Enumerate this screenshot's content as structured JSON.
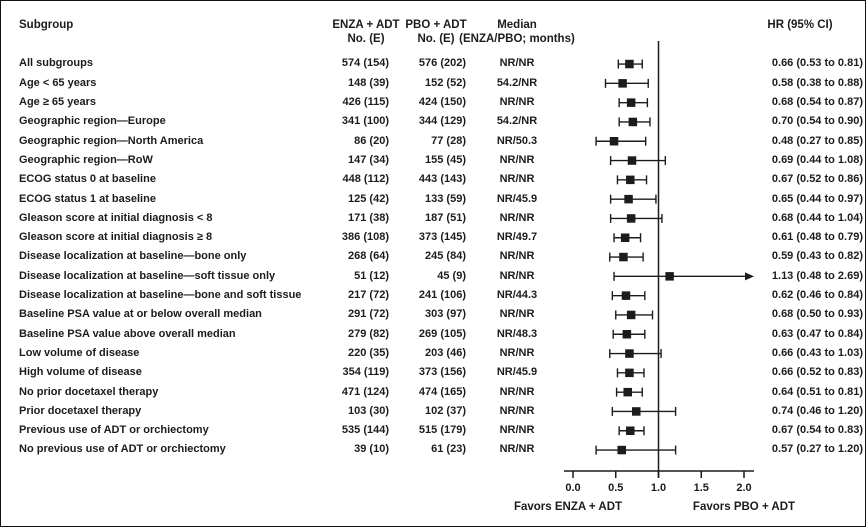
{
  "header": {
    "subgroup": "Subgroup",
    "enza_line1": "ENZA + ADT",
    "enza_line2": "No. (E)",
    "pbo_line1": "PBO + ADT",
    "pbo_line2": "No. (E)",
    "median_line1": "Median",
    "median_line2": "(ENZA/PBO; months)",
    "hr": "HR (95% CI)"
  },
  "colors": {
    "ink": "#1c1c1c",
    "background": "#ffffff"
  },
  "chart_data": {
    "type": "forest",
    "title": "",
    "xlabel_left": "Favors ENZA + ADT",
    "xlabel_right": "Favors PBO + ADT",
    "x_ticks": [
      "0.0",
      "0.5",
      "1.0",
      "1.5",
      "2.0"
    ],
    "x_tick_values": [
      0.0,
      0.5,
      1.0,
      1.5,
      2.0
    ],
    "xlim": [
      0.0,
      2.1
    ],
    "reference_line": 1.0,
    "grid": false,
    "rows": [
      {
        "subgroup": "All subgroups",
        "enza": "574 (154)",
        "pbo": "576 (202)",
        "median": "NR/NR",
        "hr": 0.66,
        "lo": 0.53,
        "hi": 0.81,
        "hr_text": "0.66 (0.53 to 0.81)",
        "arrow": false
      },
      {
        "subgroup": "Age < 65 years",
        "enza": "148 (39)",
        "pbo": "152 (52)",
        "median": "54.2/NR",
        "hr": 0.58,
        "lo": 0.38,
        "hi": 0.88,
        "hr_text": "0.58 (0.38 to 0.88)",
        "arrow": false
      },
      {
        "subgroup": "Age ≥ 65 years",
        "enza": "426 (115)",
        "pbo": "424 (150)",
        "median": "NR/NR",
        "hr": 0.68,
        "lo": 0.54,
        "hi": 0.87,
        "hr_text": "0.68 (0.54 to 0.87)",
        "arrow": false
      },
      {
        "subgroup": "Geographic region—Europe",
        "enza": "341 (100)",
        "pbo": "344 (129)",
        "median": "54.2/NR",
        "hr": 0.7,
        "lo": 0.54,
        "hi": 0.9,
        "hr_text": "0.70 (0.54 to 0.90)",
        "arrow": false
      },
      {
        "subgroup": "Geographic region—North America",
        "enza": "86 (20)",
        "pbo": "77 (28)",
        "median": "NR/50.3",
        "hr": 0.48,
        "lo": 0.27,
        "hi": 0.85,
        "hr_text": "0.48 (0.27 to 0.85)",
        "arrow": false
      },
      {
        "subgroup": "Geographic region—RoW",
        "enza": "147 (34)",
        "pbo": "155 (45)",
        "median": "NR/NR",
        "hr": 0.69,
        "lo": 0.44,
        "hi": 1.08,
        "hr_text": "0.69 (0.44 to 1.08)",
        "arrow": false
      },
      {
        "subgroup": "ECOG status 0 at baseline",
        "enza": "448 (112)",
        "pbo": "443 (143)",
        "median": "NR/NR",
        "hr": 0.67,
        "lo": 0.52,
        "hi": 0.86,
        "hr_text": "0.67 (0.52 to 0.86)",
        "arrow": false
      },
      {
        "subgroup": "ECOG status 1 at baseline",
        "enza": "125 (42)",
        "pbo": "133 (59)",
        "median": "NR/45.9",
        "hr": 0.65,
        "lo": 0.44,
        "hi": 0.97,
        "hr_text": "0.65 (0.44 to 0.97)",
        "arrow": false
      },
      {
        "subgroup": "Gleason score at initial diagnosis < 8",
        "enza": "171 (38)",
        "pbo": "187 (51)",
        "median": "NR/NR",
        "hr": 0.68,
        "lo": 0.44,
        "hi": 1.04,
        "hr_text": "0.68 (0.44 to 1.04)",
        "arrow": false
      },
      {
        "subgroup": "Gleason score at initial diagnosis ≥ 8",
        "enza": "386 (108)",
        "pbo": "373 (145)",
        "median": "NR/49.7",
        "hr": 0.61,
        "lo": 0.48,
        "hi": 0.79,
        "hr_text": "0.61 (0.48 to 0.79)",
        "arrow": false
      },
      {
        "subgroup": "Disease localization at baseline—bone only",
        "enza": "268 (64)",
        "pbo": "245 (84)",
        "median": "NR/NR",
        "hr": 0.59,
        "lo": 0.43,
        "hi": 0.82,
        "hr_text": "0.59 (0.43 to 0.82)",
        "arrow": false
      },
      {
        "subgroup": "Disease localization at baseline—soft tissue only",
        "enza": "51 (12)",
        "pbo": "45 (9)",
        "median": "NR/NR",
        "hr": 1.13,
        "lo": 0.48,
        "hi": 2.69,
        "hr_text": "1.13 (0.48 to 2.69)",
        "arrow": true
      },
      {
        "subgroup": "Disease localization at baseline—bone and soft tissue",
        "enza": "217 (72)",
        "pbo": "241 (106)",
        "median": "NR/44.3",
        "hr": 0.62,
        "lo": 0.46,
        "hi": 0.84,
        "hr_text": "0.62 (0.46 to 0.84)",
        "arrow": false
      },
      {
        "subgroup": "Baseline PSA value at or below overall median",
        "enza": "291 (72)",
        "pbo": "303 (97)",
        "median": "NR/NR",
        "hr": 0.68,
        "lo": 0.5,
        "hi": 0.93,
        "hr_text": "0.68 (0.50 to 0.93)",
        "arrow": false
      },
      {
        "subgroup": "Baseline PSA value above overall median",
        "enza": "279 (82)",
        "pbo": "269 (105)",
        "median": "NR/48.3",
        "hr": 0.63,
        "lo": 0.47,
        "hi": 0.84,
        "hr_text": "0.63 (0.47 to 0.84)",
        "arrow": false
      },
      {
        "subgroup": "Low volume of disease",
        "enza": "220 (35)",
        "pbo": "203 (46)",
        "median": "NR/NR",
        "hr": 0.66,
        "lo": 0.43,
        "hi": 1.03,
        "hr_text": "0.66 (0.43 to 1.03)",
        "arrow": false
      },
      {
        "subgroup": "High volume of disease",
        "enza": "354 (119)",
        "pbo": "373 (156)",
        "median": "NR/45.9",
        "hr": 0.66,
        "lo": 0.52,
        "hi": 0.83,
        "hr_text": "0.66 (0.52 to 0.83)",
        "arrow": false
      },
      {
        "subgroup": "No prior docetaxel therapy",
        "enza": "471 (124)",
        "pbo": "474 (165)",
        "median": "NR/NR",
        "hr": 0.64,
        "lo": 0.51,
        "hi": 0.81,
        "hr_text": "0.64 (0.51 to 0.81)",
        "arrow": false
      },
      {
        "subgroup": "Prior docetaxel therapy",
        "enza": "103 (30)",
        "pbo": "102 (37)",
        "median": "NR/NR",
        "hr": 0.74,
        "lo": 0.46,
        "hi": 1.2,
        "hr_text": "0.74 (0.46 to 1.20)",
        "arrow": false
      },
      {
        "subgroup": "Previous use of ADT or orchiectomy",
        "enza": "535 (144)",
        "pbo": "515 (179)",
        "median": "NR/NR",
        "hr": 0.67,
        "lo": 0.54,
        "hi": 0.83,
        "hr_text": "0.67 (0.54 to 0.83)",
        "arrow": false
      },
      {
        "subgroup": "No previous use of ADT or orchiectomy",
        "enza": "39 (10)",
        "pbo": "61 (23)",
        "median": "NR/NR",
        "hr": 0.57,
        "lo": 0.27,
        "hi": 1.2,
        "hr_text": "0.57 (0.27 to 1.20)",
        "arrow": false
      }
    ]
  }
}
